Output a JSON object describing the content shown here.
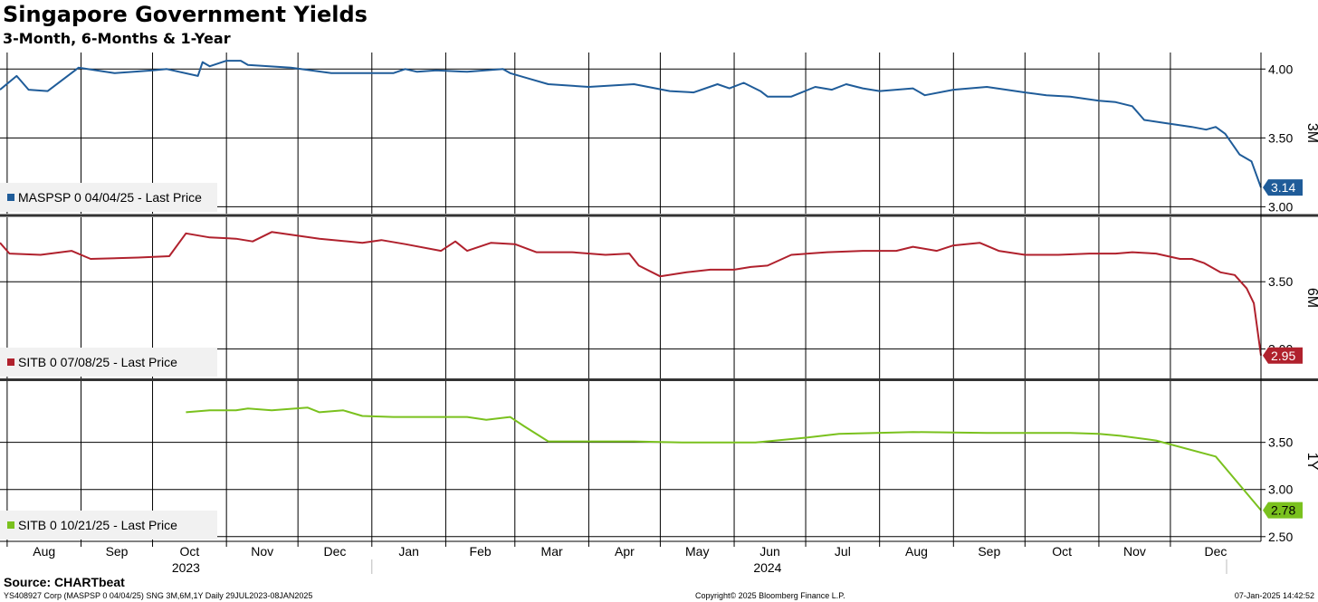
{
  "chart_data": {
    "type": "line",
    "title": "Singapore Government Yields",
    "subtitle": "3-Month, 6-Months & 1-Year",
    "x_axis": {
      "start": "2023-07-29",
      "end": "2025-01-08",
      "months": [
        {
          "label": "Aug",
          "date": "2023-08-01"
        },
        {
          "label": "Sep",
          "date": "2023-09-01"
        },
        {
          "label": "Oct",
          "date": "2023-10-01"
        },
        {
          "label": "Nov",
          "date": "2023-11-01"
        },
        {
          "label": "Dec",
          "date": "2023-12-01"
        },
        {
          "label": "Jan",
          "date": "2024-01-01"
        },
        {
          "label": "Feb",
          "date": "2024-02-01"
        },
        {
          "label": "Mar",
          "date": "2024-03-01"
        },
        {
          "label": "Apr",
          "date": "2024-04-01"
        },
        {
          "label": "May",
          "date": "2024-05-01"
        },
        {
          "label": "Jun",
          "date": "2024-06-01"
        },
        {
          "label": "Jul",
          "date": "2024-07-01"
        },
        {
          "label": "Aug",
          "date": "2024-08-01"
        },
        {
          "label": "Sep",
          "date": "2024-09-01"
        },
        {
          "label": "Oct",
          "date": "2024-10-01"
        },
        {
          "label": "Nov",
          "date": "2024-11-01"
        },
        {
          "label": "Dec",
          "date": "2024-12-01"
        }
      ],
      "years": [
        {
          "label": "2023",
          "date": "2023-10-15"
        },
        {
          "label": "2024",
          "date": "2024-06-15"
        }
      ],
      "year_separators": [
        "2024-01-01",
        "2025-01-01"
      ]
    },
    "grid": true,
    "panels": [
      {
        "axis_label": "3M",
        "ylim": [
          2.95,
          4.12
        ],
        "yticks": [
          "4.00",
          "3.50",
          "3.00"
        ],
        "legend": "MASPSP 0 04/04/25 - Last Price",
        "last_value": "3.14",
        "color": "#1f5c99",
        "points": [
          [
            "2023-07-29",
            3.85
          ],
          [
            "2023-08-05",
            3.95
          ],
          [
            "2023-08-10",
            3.85
          ],
          [
            "2023-08-18",
            3.84
          ],
          [
            "2023-08-31",
            4.01
          ],
          [
            "2023-09-15",
            3.97
          ],
          [
            "2023-10-01",
            3.99
          ],
          [
            "2023-10-07",
            4.0
          ],
          [
            "2023-10-20",
            3.95
          ],
          [
            "2023-10-22",
            4.05
          ],
          [
            "2023-10-25",
            4.02
          ],
          [
            "2023-11-01",
            4.06
          ],
          [
            "2023-11-07",
            4.06
          ],
          [
            "2023-11-10",
            4.03
          ],
          [
            "2023-11-28",
            4.01
          ],
          [
            "2023-12-15",
            3.97
          ],
          [
            "2024-01-10",
            3.97
          ],
          [
            "2024-01-15",
            4.0
          ],
          [
            "2024-01-20",
            3.98
          ],
          [
            "2024-01-28",
            3.99
          ],
          [
            "2024-02-10",
            3.98
          ],
          [
            "2024-02-25",
            4.0
          ],
          [
            "2024-02-28",
            3.97
          ],
          [
            "2024-03-07",
            3.93
          ],
          [
            "2024-03-15",
            3.89
          ],
          [
            "2024-04-01",
            3.87
          ],
          [
            "2024-04-20",
            3.89
          ],
          [
            "2024-05-05",
            3.84
          ],
          [
            "2024-05-15",
            3.83
          ],
          [
            "2024-05-25",
            3.89
          ],
          [
            "2024-05-30",
            3.86
          ],
          [
            "2024-06-05",
            3.9
          ],
          [
            "2024-06-12",
            3.84
          ],
          [
            "2024-06-15",
            3.8
          ],
          [
            "2024-06-25",
            3.8
          ],
          [
            "2024-07-05",
            3.87
          ],
          [
            "2024-07-12",
            3.85
          ],
          [
            "2024-07-18",
            3.89
          ],
          [
            "2024-07-25",
            3.86
          ],
          [
            "2024-08-01",
            3.84
          ],
          [
            "2024-08-15",
            3.86
          ],
          [
            "2024-08-20",
            3.81
          ],
          [
            "2024-09-01",
            3.85
          ],
          [
            "2024-09-15",
            3.87
          ],
          [
            "2024-10-01",
            3.83
          ],
          [
            "2024-10-10",
            3.81
          ],
          [
            "2024-10-20",
            3.8
          ],
          [
            "2024-11-01",
            3.77
          ],
          [
            "2024-11-08",
            3.76
          ],
          [
            "2024-11-15",
            3.73
          ],
          [
            "2024-11-20",
            3.63
          ],
          [
            "2024-11-28",
            3.61
          ],
          [
            "2024-12-10",
            3.58
          ],
          [
            "2024-12-16",
            3.56
          ],
          [
            "2024-12-20",
            3.58
          ],
          [
            "2024-12-24",
            3.53
          ],
          [
            "2024-12-30",
            3.38
          ],
          [
            "2025-01-04",
            3.33
          ],
          [
            "2025-01-08",
            3.14
          ]
        ]
      },
      {
        "axis_label": "6M",
        "ylim": [
          2.78,
          3.98
        ],
        "yticks": [
          "3.50",
          "3.00"
        ],
        "legend": "SITB 0 07/08/25 - Last Price",
        "last_value": "2.95",
        "color": "#b0212d",
        "points": [
          [
            "2023-07-29",
            3.79
          ],
          [
            "2023-08-02",
            3.71
          ],
          [
            "2023-08-15",
            3.7
          ],
          [
            "2023-08-28",
            3.73
          ],
          [
            "2023-09-05",
            3.67
          ],
          [
            "2023-09-25",
            3.68
          ],
          [
            "2023-10-08",
            3.69
          ],
          [
            "2023-10-15",
            3.86
          ],
          [
            "2023-10-25",
            3.83
          ],
          [
            "2023-11-05",
            3.82
          ],
          [
            "2023-11-12",
            3.8
          ],
          [
            "2023-11-20",
            3.87
          ],
          [
            "2023-12-10",
            3.82
          ],
          [
            "2023-12-28",
            3.79
          ],
          [
            "2024-01-05",
            3.81
          ],
          [
            "2024-01-15",
            3.78
          ],
          [
            "2024-01-30",
            3.73
          ],
          [
            "2024-02-05",
            3.8
          ],
          [
            "2024-02-10",
            3.73
          ],
          [
            "2024-02-20",
            3.79
          ],
          [
            "2024-03-01",
            3.78
          ],
          [
            "2024-03-10",
            3.72
          ],
          [
            "2024-03-25",
            3.72
          ],
          [
            "2024-04-08",
            3.7
          ],
          [
            "2024-04-18",
            3.71
          ],
          [
            "2024-04-22",
            3.62
          ],
          [
            "2024-05-01",
            3.54
          ],
          [
            "2024-05-12",
            3.57
          ],
          [
            "2024-05-22",
            3.59
          ],
          [
            "2024-06-01",
            3.59
          ],
          [
            "2024-06-08",
            3.61
          ],
          [
            "2024-06-15",
            3.62
          ],
          [
            "2024-06-25",
            3.7
          ],
          [
            "2024-07-10",
            3.72
          ],
          [
            "2024-07-25",
            3.73
          ],
          [
            "2024-08-08",
            3.73
          ],
          [
            "2024-08-15",
            3.76
          ],
          [
            "2024-08-25",
            3.73
          ],
          [
            "2024-09-01",
            3.77
          ],
          [
            "2024-09-12",
            3.79
          ],
          [
            "2024-09-20",
            3.73
          ],
          [
            "2024-10-01",
            3.7
          ],
          [
            "2024-10-15",
            3.7
          ],
          [
            "2024-10-28",
            3.71
          ],
          [
            "2024-11-08",
            3.71
          ],
          [
            "2024-11-15",
            3.72
          ],
          [
            "2024-11-25",
            3.71
          ],
          [
            "2024-12-05",
            3.67
          ],
          [
            "2024-12-10",
            3.67
          ],
          [
            "2024-12-15",
            3.64
          ],
          [
            "2024-12-22",
            3.57
          ],
          [
            "2024-12-28",
            3.55
          ],
          [
            "2025-01-02",
            3.45
          ],
          [
            "2025-01-05",
            3.34
          ],
          [
            "2025-01-08",
            2.95
          ]
        ]
      },
      {
        "axis_label": "1Y",
        "ylim": [
          2.45,
          4.15
        ],
        "yticks": [
          "3.50",
          "3.00",
          "2.50"
        ],
        "legend": "SITB 0 10/21/25 - Last Price",
        "last_value": "2.78",
        "color": "#7ac11e",
        "points": [
          [
            "2023-10-15",
            3.82
          ],
          [
            "2023-10-25",
            3.84
          ],
          [
            "2023-11-05",
            3.84
          ],
          [
            "2023-11-10",
            3.86
          ],
          [
            "2023-11-20",
            3.84
          ],
          [
            "2023-12-05",
            3.87
          ],
          [
            "2023-12-10",
            3.82
          ],
          [
            "2023-12-20",
            3.84
          ],
          [
            "2023-12-28",
            3.78
          ],
          [
            "2024-01-10",
            3.77
          ],
          [
            "2024-01-25",
            3.77
          ],
          [
            "2024-02-10",
            3.77
          ],
          [
            "2024-02-18",
            3.74
          ],
          [
            "2024-02-28",
            3.77
          ],
          [
            "2024-03-05",
            3.67
          ],
          [
            "2024-03-15",
            3.51
          ],
          [
            "2024-04-20",
            3.51
          ],
          [
            "2024-05-10",
            3.5
          ],
          [
            "2024-06-10",
            3.5
          ],
          [
            "2024-07-01",
            3.55
          ],
          [
            "2024-07-15",
            3.59
          ],
          [
            "2024-08-15",
            3.61
          ],
          [
            "2024-09-15",
            3.6
          ],
          [
            "2024-10-20",
            3.6
          ],
          [
            "2024-11-01",
            3.59
          ],
          [
            "2024-11-10",
            3.57
          ],
          [
            "2024-11-25",
            3.52
          ],
          [
            "2024-12-20",
            3.35
          ],
          [
            "2025-01-08",
            2.78
          ]
        ]
      }
    ]
  },
  "footer": {
    "source": "Source: CHARTbeat",
    "left": "YS408927 Corp (MASPSP 0 04/04/25) SNG 3M,6M,1Y  Daily 29JUL2023-08JAN2025",
    "center": "Copyright© 2025 Bloomberg Finance L.P.",
    "right": "07-Jan-2025 14:42:52"
  }
}
